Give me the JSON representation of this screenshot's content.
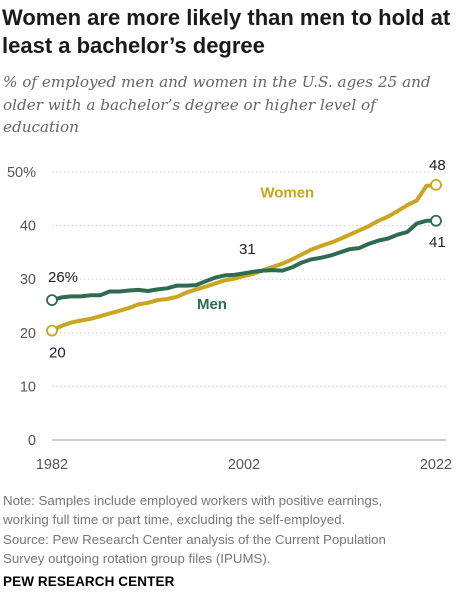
{
  "title": "Women are more likely than men to hold at least a bachelor’s degree",
  "subtitle": "% of employed men and women in the U.S. ages 25 and older with a bachelor’s degree or higher level of education",
  "note_lines": [
    "Note: Samples include employed workers with positive earnings,",
    "working full time or part time, excluding the self-employed.",
    "Source: Pew Research Center analysis of the Current Population",
    "Survey outgoing rotation group files (IPUMS)."
  ],
  "brand": "PEW RESEARCH CENTER",
  "chart_data": {
    "type": "line",
    "title": "Women are more likely than men to hold at least a bachelor’s degree",
    "subtitle": "% of employed men and women in the U.S. ages 25 and older with a bachelor’s degree or higher level of education",
    "xlabel": "",
    "ylabel": "",
    "xlim": [
      1982,
      2022
    ],
    "ylim": [
      0,
      50
    ],
    "grid": "horizontal dotted",
    "legend": "inline labels",
    "x_ticks": [
      "1982",
      "2002",
      "2022"
    ],
    "y_ticks": [
      "0",
      "10",
      "20",
      "30",
      "40",
      "50%"
    ],
    "x": [
      1982,
      1983,
      1984,
      1985,
      1986,
      1987,
      1988,
      1989,
      1990,
      1991,
      1992,
      1993,
      1994,
      1995,
      1996,
      1997,
      1998,
      1999,
      2000,
      2001,
      2002,
      2003,
      2004,
      2005,
      2006,
      2007,
      2008,
      2009,
      2010,
      2011,
      2012,
      2013,
      2014,
      2015,
      2016,
      2017,
      2018,
      2019,
      2020,
      2021,
      2022
    ],
    "series": [
      {
        "name": "Women",
        "color": "#c9a520",
        "values": [
          20.4,
          21.3,
          21.9,
          22.3,
          22.6,
          23.1,
          23.6,
          24.1,
          24.6,
          25.3,
          25.6,
          26.1,
          26.3,
          26.7,
          27.5,
          28.1,
          28.6,
          29.2,
          29.8,
          30.1,
          30.6,
          31.0,
          31.7,
          32.3,
          32.9,
          33.7,
          34.6,
          35.5,
          36.2,
          36.8,
          37.5,
          38.3,
          39.1,
          39.9,
          40.9,
          41.7,
          42.7,
          43.8,
          44.7,
          47.4,
          47.6
        ]
      },
      {
        "name": "Men",
        "color": "#2f6b4e",
        "values": [
          26.1,
          26.6,
          26.8,
          26.8,
          27.0,
          27.0,
          27.7,
          27.7,
          27.9,
          28.0,
          27.8,
          28.1,
          28.3,
          28.8,
          28.8,
          28.9,
          29.6,
          30.3,
          30.7,
          30.8,
          31.1,
          31.4,
          31.6,
          31.7,
          31.6,
          32.2,
          33.1,
          33.7,
          34.0,
          34.4,
          35.0,
          35.6,
          35.8,
          36.6,
          37.2,
          37.6,
          38.3,
          38.8,
          40.4,
          40.9,
          40.9
        ]
      }
    ],
    "annotations": [
      {
        "text": "26%",
        "x": 1982,
        "series": "Men"
      },
      {
        "text": "20",
        "x": 1982,
        "series": "Women"
      },
      {
        "text": "31",
        "x": 2002,
        "series": "both"
      },
      {
        "text": "48",
        "x": 2022,
        "series": "Women"
      },
      {
        "text": "41",
        "x": 2022,
        "series": "Men"
      }
    ]
  }
}
